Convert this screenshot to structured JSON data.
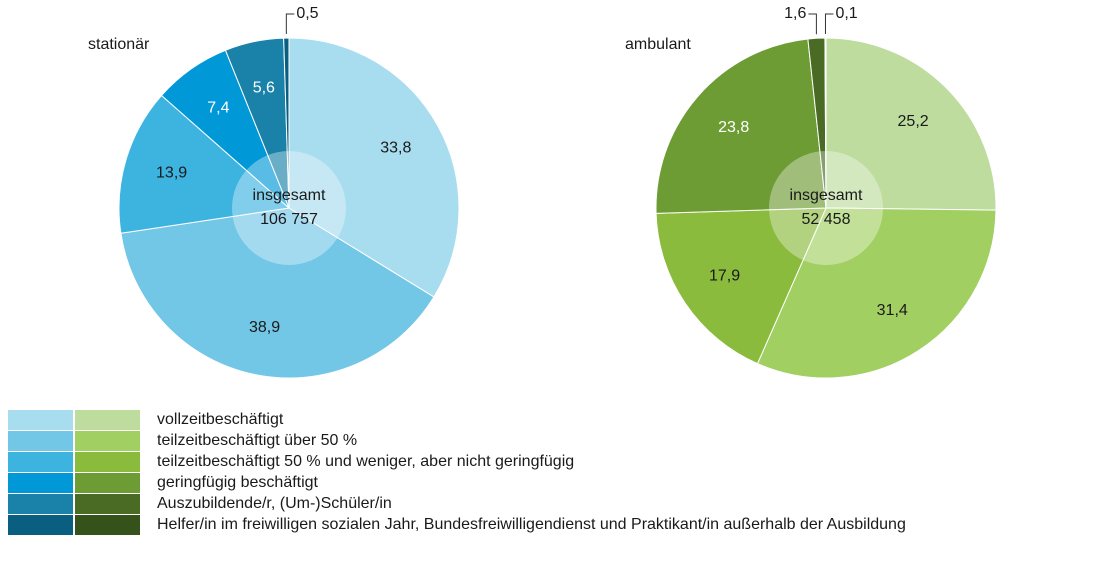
{
  "chart_data": [
    {
      "type": "pie",
      "title": "stationär",
      "center_label": "insgesamt",
      "total": "106 757",
      "values": [
        33.8,
        38.9,
        13.9,
        7.4,
        5.6,
        0.5
      ],
      "value_labels": [
        "33,8",
        "38,9",
        "13,9",
        "7,4",
        "5,6",
        "0,5"
      ],
      "colors": [
        "#a8dcef",
        "#72c6e6",
        "#3db4e0",
        "#0098d6",
        "#1a82a8",
        "#0a5f80"
      ]
    },
    {
      "type": "pie",
      "title": "ambulant",
      "center_label": "insgesamt",
      "total": "52 458",
      "values": [
        25.2,
        31.4,
        17.9,
        23.8,
        1.6,
        0.1
      ],
      "value_labels": [
        "25,2",
        "31,4",
        "17,9",
        "23,8",
        "1,6",
        "0,1"
      ],
      "colors": [
        "#bddc9e",
        "#a2cf62",
        "#8abb3c",
        "#6e9c34",
        "#4a6b24",
        "#35521a"
      ]
    }
  ],
  "legend": [
    "vollzeitbeschäftigt",
    "teilzeitbeschäftigt über 50 %",
    "teilzeitbeschäftigt 50 % und weniger, aber nicht geringfügig",
    "geringfügig beschäftigt",
    "Auszubildende/r, (Um-)Schüler/in",
    "Helfer/in im freiwilligen sozialen Jahr, Bundesfreiwilligendienst und Praktikant/in außerhalb der Ausbildung"
  ]
}
